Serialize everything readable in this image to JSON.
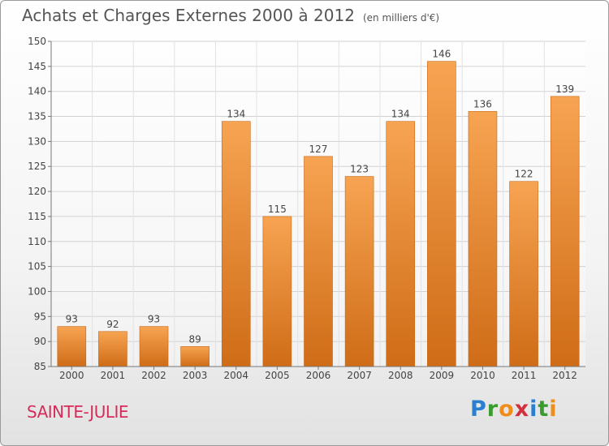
{
  "header": {
    "title": "Achats et Charges Externes 2000 à 2012",
    "unit": "(en milliers d'€)"
  },
  "footer": {
    "location": "SAINTE-JULIE"
  },
  "brand": {
    "letters": [
      "P",
      "r",
      "o",
      "x",
      "i",
      "t",
      "i"
    ],
    "colors": [
      "#2a7fd1",
      "#3a9b2f",
      "#f08c1a",
      "#d42f3c",
      "#2a7fd1",
      "#3a9b2f",
      "#f08c1a"
    ]
  },
  "chart_data": {
    "type": "bar",
    "title": "Achats et Charges Externes 2000 à 2012",
    "xlabel": "",
    "ylabel": "",
    "categories": [
      "2000",
      "2001",
      "2002",
      "2003",
      "2004",
      "2005",
      "2006",
      "2007",
      "2008",
      "2009",
      "2010",
      "2011",
      "2012"
    ],
    "values": [
      93,
      92,
      93,
      89,
      134,
      115,
      127,
      123,
      134,
      146,
      136,
      122,
      139
    ],
    "ylim": [
      85,
      150
    ],
    "yticks": [
      85,
      90,
      95,
      100,
      105,
      110,
      115,
      120,
      125,
      130,
      135,
      140,
      145,
      150
    ],
    "grid": true,
    "bar_color": "#f39b3f"
  }
}
